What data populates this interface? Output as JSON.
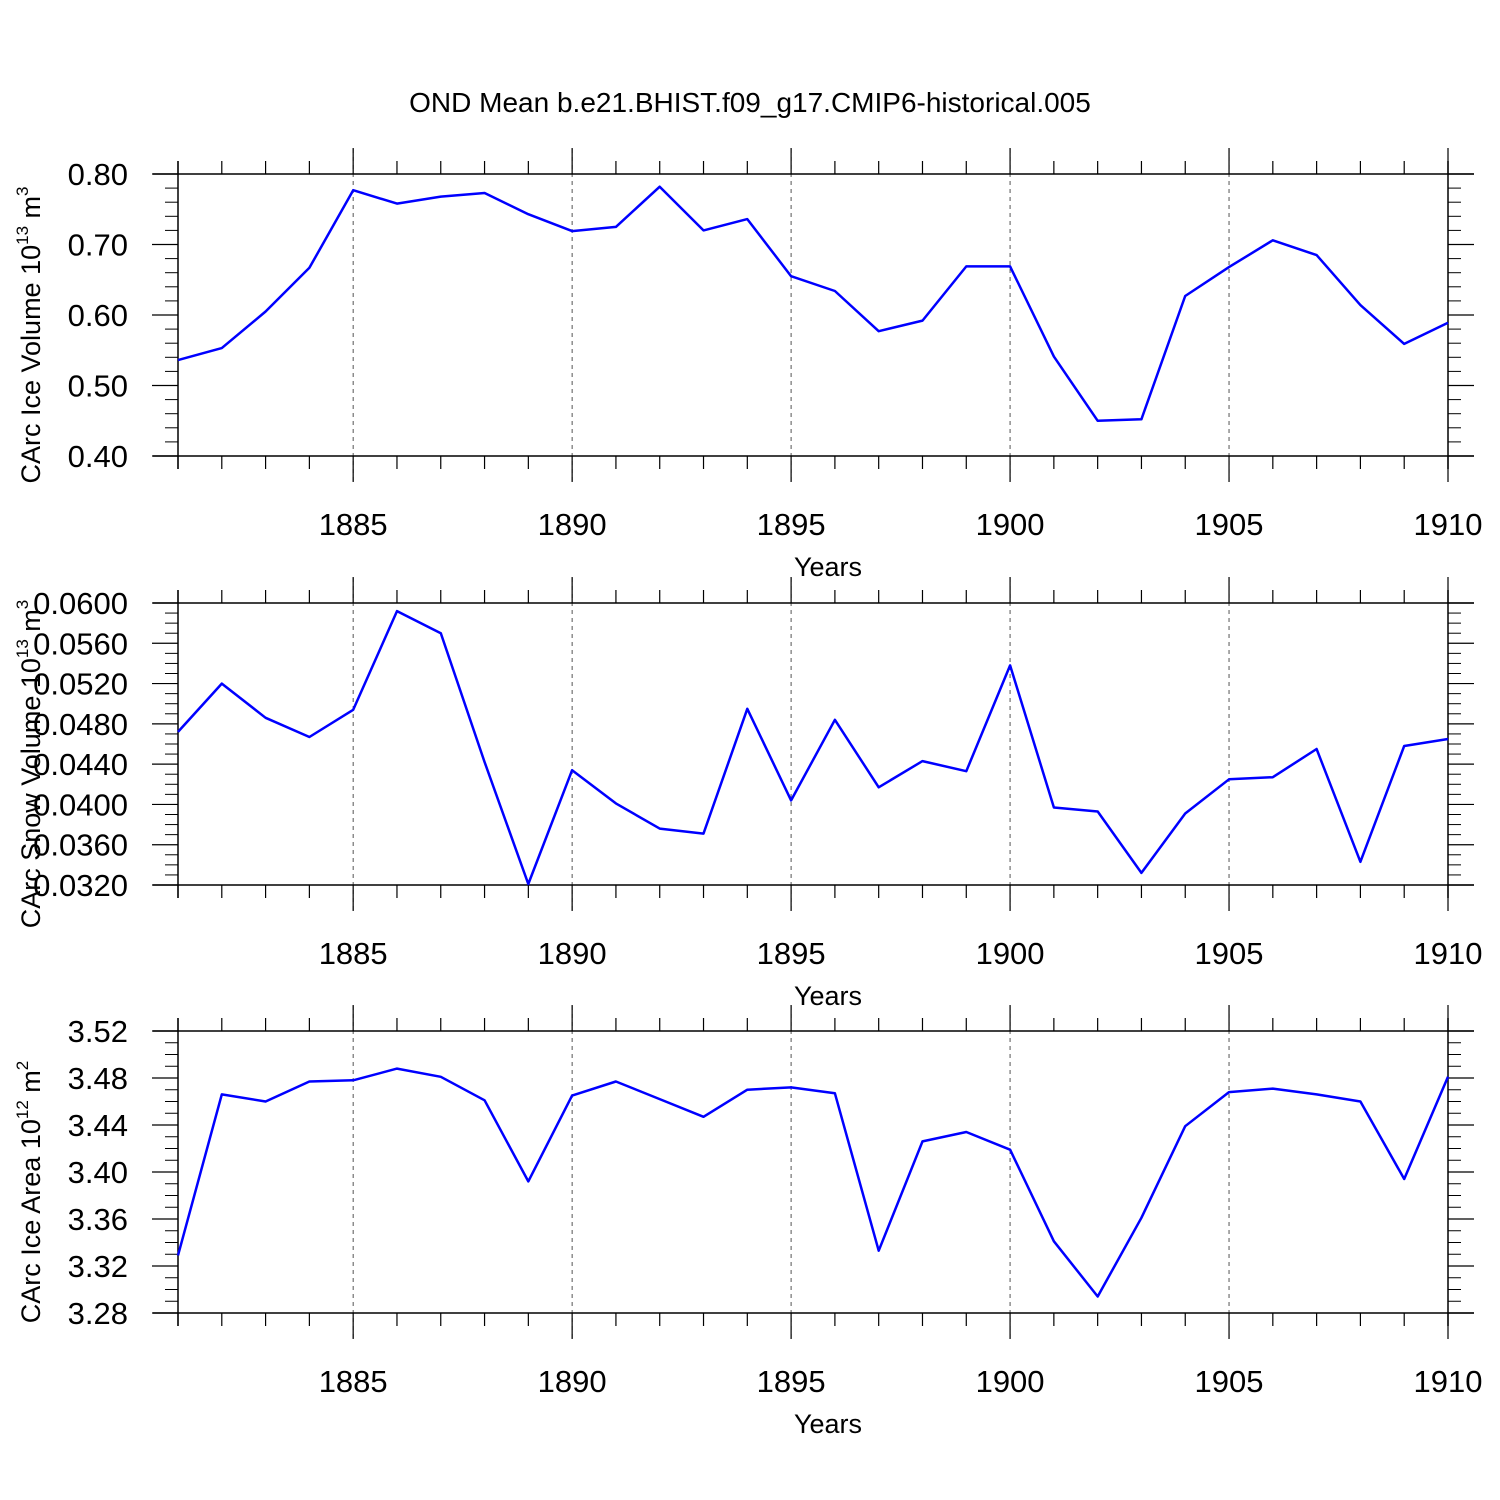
{
  "chart_data": [
    {
      "type": "line",
      "title": "OND Mean b.e21.BHIST.f09_g17.CMIP6-historical.005",
      "xlabel": "Years",
      "ylabel": {
        "main": "CArc Ice Volume 10",
        "sup": "13",
        "unit": " m",
        "unit_sup": "3"
      },
      "xlim": [
        1881,
        1910
      ],
      "ylim": [
        0.4,
        0.8
      ],
      "yticks": [
        "0.40",
        "0.50",
        "0.60",
        "0.70",
        "0.80"
      ],
      "ytick_values": [
        0.4,
        0.5,
        0.6,
        0.7,
        0.8
      ],
      "xticks": [
        "1885",
        "1890",
        "1895",
        "1900",
        "1905",
        "1910"
      ],
      "color": "#0000ff",
      "grid": "dashed vertical at major x ticks",
      "x": [
        1881,
        1882,
        1883,
        1884,
        1885,
        1886,
        1887,
        1888,
        1889,
        1890,
        1891,
        1892,
        1893,
        1894,
        1895,
        1896,
        1897,
        1898,
        1899,
        1900,
        1901,
        1902,
        1903,
        1904,
        1905,
        1906,
        1907,
        1908,
        1909,
        1910
      ],
      "values": [
        0.536,
        0.553,
        0.605,
        0.667,
        0.777,
        0.758,
        0.768,
        0.773,
        0.743,
        0.719,
        0.725,
        0.782,
        0.72,
        0.736,
        0.655,
        0.634,
        0.577,
        0.592,
        0.669,
        0.669,
        0.541,
        0.45,
        0.452,
        0.627,
        0.668,
        0.706,
        0.685,
        0.614,
        0.559,
        0.589
      ]
    },
    {
      "type": "line",
      "title": "",
      "xlabel": "Years",
      "ylabel": {
        "main": "CArc Snow Volume 10",
        "sup": "13",
        "unit": " m",
        "unit_sup": "3"
      },
      "xlim": [
        1881,
        1910
      ],
      "ylim": [
        0.032,
        0.06
      ],
      "yticks": [
        "0.0320",
        "0.0360",
        "0.0400",
        "0.0440",
        "0.0480",
        "0.0520",
        "0.0560",
        "0.0600"
      ],
      "ytick_values": [
        0.032,
        0.036,
        0.04,
        0.044,
        0.048,
        0.052,
        0.056,
        0.06
      ],
      "xticks": [
        "1885",
        "1890",
        "1895",
        "1900",
        "1905",
        "1910"
      ],
      "color": "#0000ff",
      "grid": "dashed vertical at major x ticks",
      "x": [
        1881,
        1882,
        1883,
        1884,
        1885,
        1886,
        1887,
        1888,
        1889,
        1890,
        1891,
        1892,
        1893,
        1894,
        1895,
        1896,
        1897,
        1898,
        1899,
        1900,
        1901,
        1902,
        1903,
        1904,
        1905,
        1906,
        1907,
        1908,
        1909,
        1910
      ],
      "values": [
        0.0472,
        0.052,
        0.0486,
        0.0467,
        0.0494,
        0.0592,
        0.057,
        0.0442,
        0.0321,
        0.0434,
        0.0401,
        0.0376,
        0.0371,
        0.0495,
        0.0404,
        0.0484,
        0.0417,
        0.0443,
        0.0433,
        0.0538,
        0.0397,
        0.0393,
        0.0332,
        0.0391,
        0.0425,
        0.0427,
        0.0455,
        0.0343,
        0.0458,
        0.0465
      ]
    },
    {
      "type": "line",
      "title": "",
      "xlabel": "Years",
      "ylabel": {
        "main": "CArc Ice Area 10",
        "sup": "12",
        "unit": " m",
        "unit_sup": "2"
      },
      "xlim": [
        1881,
        1910
      ],
      "ylim": [
        3.28,
        3.52
      ],
      "yticks": [
        "3.28",
        "3.32",
        "3.36",
        "3.40",
        "3.44",
        "3.48",
        "3.52"
      ],
      "ytick_values": [
        3.28,
        3.32,
        3.36,
        3.4,
        3.44,
        3.48,
        3.52
      ],
      "xticks": [
        "1885",
        "1890",
        "1895",
        "1900",
        "1905",
        "1910"
      ],
      "color": "#0000ff",
      "grid": "dashed vertical at major x ticks",
      "x": [
        1881,
        1882,
        1883,
        1884,
        1885,
        1886,
        1887,
        1888,
        1889,
        1890,
        1891,
        1892,
        1893,
        1894,
        1895,
        1896,
        1897,
        1898,
        1899,
        1900,
        1901,
        1902,
        1903,
        1904,
        1905,
        1906,
        1907,
        1908,
        1909,
        1910
      ],
      "values": [
        3.329,
        3.466,
        3.46,
        3.477,
        3.478,
        3.488,
        3.481,
        3.461,
        3.392,
        3.465,
        3.477,
        3.462,
        3.447,
        3.47,
        3.472,
        3.467,
        3.333,
        3.426,
        3.434,
        3.419,
        3.341,
        3.294,
        3.361,
        3.439,
        3.468,
        3.471,
        3.466,
        3.46,
        3.394,
        3.481
      ]
    }
  ]
}
